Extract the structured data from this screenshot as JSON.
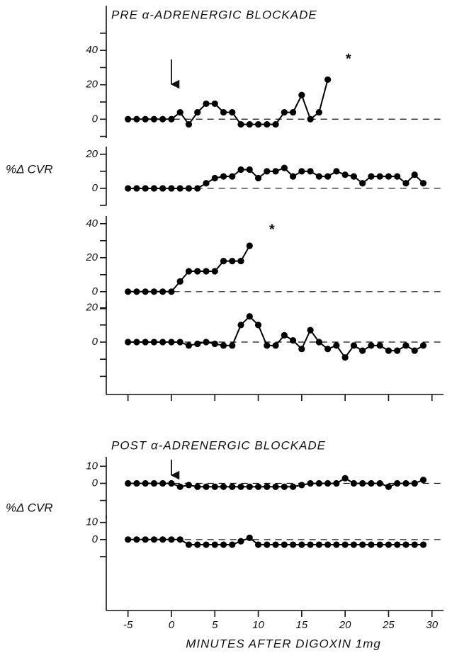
{
  "chart_data": [
    {
      "type": "line",
      "title": "PRE α-ADRENERGIC BLOCKADE",
      "annotations": [
        "*"
      ],
      "arrow_at": 0,
      "x": [
        -5,
        -4,
        -3,
        -2,
        -1,
        0,
        1,
        2,
        3,
        4,
        5,
        6,
        7,
        8,
        9,
        10,
        11,
        12,
        13,
        14,
        15,
        16,
        17,
        18
      ],
      "series": [
        {
          "color": "#000000",
          "values": [
            0,
            0,
            0,
            0,
            0,
            0,
            4,
            -3,
            4,
            9,
            9,
            4,
            4,
            -3,
            -3,
            -3,
            -3,
            -3,
            4,
            4,
            14,
            0,
            4,
            23
          ]
        }
      ],
      "ylim": [
        -11,
        66
      ],
      "yticks": [
        0,
        20,
        40
      ],
      "yminor": [
        -10,
        10,
        30,
        50
      ]
    },
    {
      "type": "line",
      "ylabel": "%Δ CVR",
      "x": [
        -5,
        -4,
        -3,
        -2,
        -1,
        0,
        1,
        2,
        3,
        4,
        5,
        6,
        7,
        8,
        9,
        10,
        11,
        12,
        13,
        14,
        15,
        16,
        17,
        18,
        19,
        20,
        21,
        22,
        23,
        24,
        25,
        26,
        27,
        28,
        29
      ],
      "series": [
        {
          "color": "#000000",
          "values": [
            0,
            0,
            0,
            0,
            0,
            0,
            0,
            0,
            0,
            3,
            6,
            7,
            7,
            11,
            11,
            6,
            10,
            10,
            12,
            7,
            10,
            10,
            7,
            7,
            10,
            8,
            7,
            3,
            7,
            7,
            7,
            7,
            3,
            8,
            3
          ]
        }
      ],
      "ylim": [
        -10,
        24.5
      ],
      "yticks": [
        0,
        20
      ],
      "yminor": [
        -10,
        10
      ]
    },
    {
      "type": "line",
      "annotations": [
        "*"
      ],
      "x": [
        -5,
        -4,
        -3,
        -2,
        -1,
        0,
        1,
        2,
        3,
        4,
        5,
        6,
        7,
        8,
        9
      ],
      "series": [
        {
          "color": "#000000",
          "values": [
            0,
            0,
            0,
            0,
            0,
            0,
            6,
            12,
            12,
            12,
            12,
            18,
            18,
            18,
            27
          ]
        }
      ],
      "ylim": [
        -10.5,
        44.5
      ],
      "yticks": [
        0,
        20,
        40
      ],
      "yminor": [
        -10,
        10,
        30
      ]
    },
    {
      "type": "line",
      "x": [
        -5,
        -4,
        -3,
        -2,
        -1,
        0,
        1,
        2,
        3,
        4,
        5,
        6,
        7,
        8,
        9,
        10,
        11,
        12,
        13,
        14,
        15,
        16,
        17,
        18,
        19,
        20,
        21,
        22,
        23,
        24,
        25,
        26,
        27,
        28,
        29
      ],
      "series": [
        {
          "color": "#000000",
          "values": [
            0,
            0,
            0,
            0,
            0,
            0,
            0,
            -2,
            -1,
            0,
            -1,
            -2,
            -2,
            10,
            15,
            10,
            -2,
            -2,
            4,
            1,
            -4,
            7,
            0,
            -4,
            -2,
            -9,
            -2,
            -5,
            -2,
            -2,
            -5,
            -5,
            -2,
            -5,
            -2
          ]
        }
      ],
      "ylim": [
        -30.6,
        24
      ],
      "yticks": [
        0,
        20
      ],
      "yminor": [
        -20,
        -10,
        10
      ]
    },
    {
      "type": "line",
      "title": "POST α-ADRENERGIC BLOCKADE",
      "ylabel": "%Δ CVR",
      "arrow_at": 0,
      "x": [
        -5,
        -4,
        -3,
        -2,
        -1,
        0,
        1,
        2,
        3,
        4,
        5,
        6,
        7,
        8,
        9,
        10,
        11,
        12,
        13,
        14,
        15,
        16,
        17,
        18,
        19,
        20,
        21,
        22,
        23,
        24,
        25,
        26,
        27,
        28,
        29
      ],
      "series": [
        {
          "color": "#000000",
          "values": [
            0,
            0,
            0,
            0,
            0,
            0,
            -2,
            -1,
            -2,
            -2,
            -2,
            -2,
            -2,
            -2,
            -2,
            -2,
            -2,
            -2,
            -2,
            -2,
            -1,
            0,
            0,
            0,
            0,
            3,
            0,
            0,
            0,
            0,
            -2,
            0,
            0,
            0,
            2
          ]
        }
      ],
      "ylim": [
        -20.5,
        15.5
      ],
      "yticks": [
        0,
        10
      ],
      "yminor": [
        -10
      ]
    },
    {
      "type": "line",
      "xlabel": "MINUTES AFTER DIGOXIN 1mg",
      "x": [
        -5,
        -4,
        -3,
        -2,
        -1,
        0,
        1,
        2,
        3,
        4,
        5,
        6,
        7,
        8,
        9,
        10,
        11,
        12,
        13,
        14,
        15,
        16,
        17,
        18,
        19,
        20,
        21,
        22,
        23,
        24,
        25,
        26,
        27,
        28,
        29
      ],
      "series": [
        {
          "color": "#000000",
          "values": [
            0,
            0,
            0,
            0,
            0,
            0,
            0,
            -3,
            -3,
            -3,
            -3,
            -3,
            -3,
            -1,
            1,
            -3,
            -3,
            -3,
            -3,
            -3,
            -3,
            -3,
            -3,
            -3,
            -3,
            -3,
            -3,
            -3,
            -3,
            -3,
            -3,
            -3,
            -3,
            -3,
            -3
          ]
        }
      ],
      "ylim": [
        -41.5,
        14
      ],
      "yticks": [
        0,
        10
      ],
      "yminor": [
        -10
      ],
      "xlim": [
        -7.5,
        31
      ],
      "xticks": [
        -5,
        0,
        5,
        10,
        15,
        20,
        25,
        30
      ]
    }
  ]
}
